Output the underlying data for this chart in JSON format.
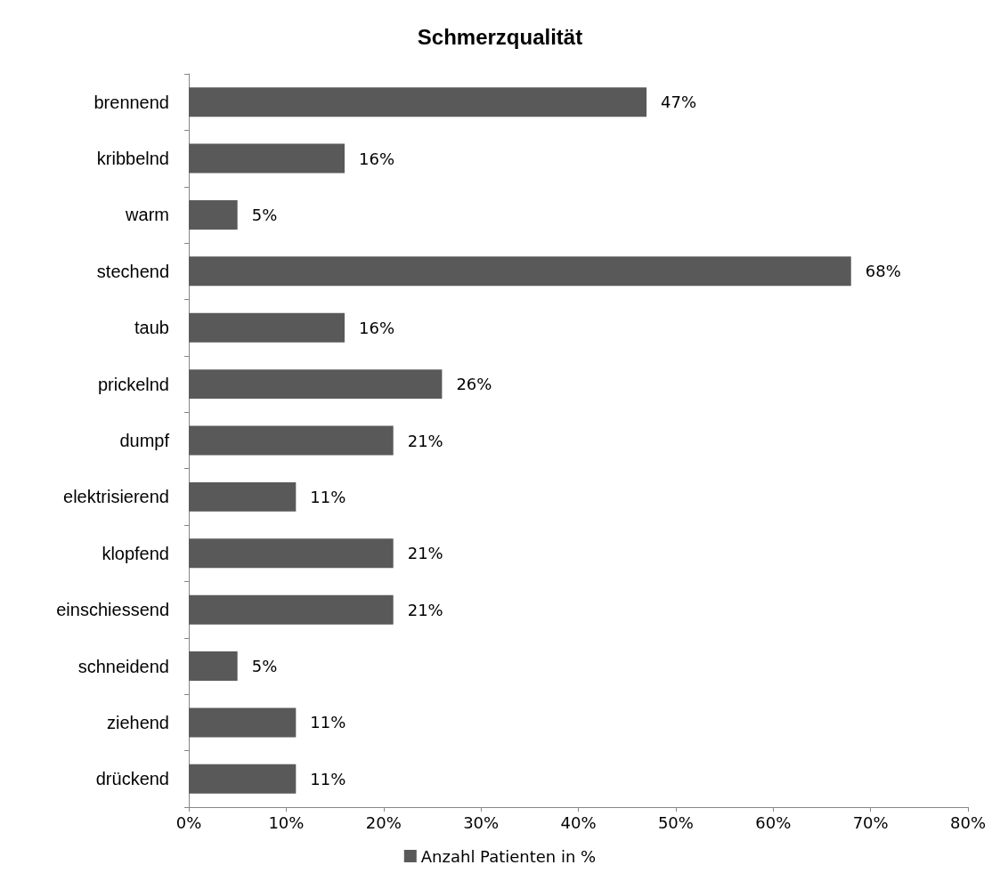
{
  "chart_data": {
    "type": "bar",
    "orientation": "horizontal",
    "title": "Schmerzqualität",
    "categories": [
      "brennend",
      "kribbelnd",
      "warm",
      "stechend",
      "taub",
      "prickelnd",
      "dumpf",
      "elektrisierend",
      "klopfend",
      "einschiessend",
      "schneidend",
      "ziehend",
      "drückend"
    ],
    "series": [
      {
        "name": "Anzahl Patienten in %",
        "color": "#595959",
        "values": [
          47,
          16,
          5,
          68,
          16,
          26,
          21,
          11,
          21,
          21,
          5,
          11,
          11
        ],
        "value_labels": [
          "47%",
          "16%",
          "5%",
          "68%",
          "16%",
          "26%",
          "21%",
          "11%",
          "21%",
          "21%",
          "5%",
          "11%",
          "11%"
        ]
      }
    ],
    "xlim": [
      0,
      80
    ],
    "xticks": [
      {
        "value": 0,
        "label": "0%"
      },
      {
        "value": 10,
        "label": "10%"
      },
      {
        "value": 20,
        "label": "20%"
      },
      {
        "value": 30,
        "label": "30%"
      },
      {
        "value": 40,
        "label": "40%"
      },
      {
        "value": 50,
        "label": "50%"
      },
      {
        "value": 60,
        "label": "60%"
      },
      {
        "value": 70,
        "label": "70%"
      },
      {
        "value": 80,
        "label": "80%"
      }
    ],
    "grid": false,
    "legend": "bottom"
  }
}
